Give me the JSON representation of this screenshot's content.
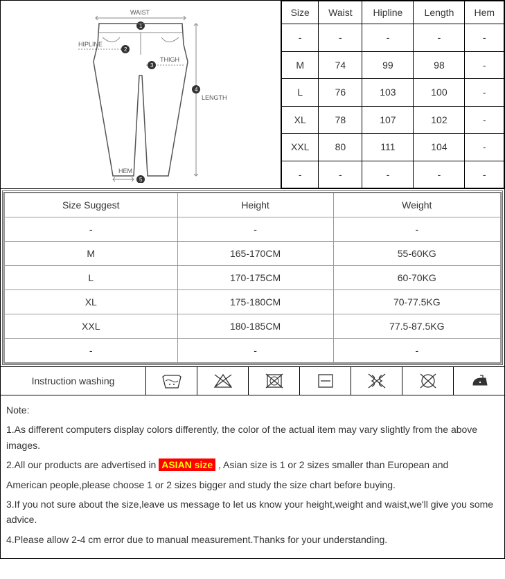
{
  "diagram": {
    "labels": {
      "waist": "WAIST",
      "hipline": "HIPLINE",
      "thigh": "THIGH",
      "length": "LENGTH",
      "hem": "HEM"
    },
    "markers": {
      "n1": "1",
      "n2": "2",
      "n3": "3",
      "n4": "4",
      "n5": "5"
    }
  },
  "sizeTable": {
    "columns": [
      "Size",
      "Waist",
      "Hipline",
      "Length",
      "Hem"
    ],
    "rows": [
      [
        "-",
        "-",
        "-",
        "-",
        "-"
      ],
      [
        "M",
        "74",
        "99",
        "98",
        "-"
      ],
      [
        "L",
        "76",
        "103",
        "100",
        "-"
      ],
      [
        "XL",
        "78",
        "107",
        "102",
        "-"
      ],
      [
        "XXL",
        "80",
        "111",
        "104",
        "-"
      ],
      [
        "-",
        "-",
        "-",
        "-",
        "-"
      ]
    ]
  },
  "suggestTable": {
    "columns": [
      "Size Suggest",
      "Height",
      "Weight"
    ],
    "rows": [
      [
        "-",
        "-",
        "-"
      ],
      [
        "M",
        "165-170CM",
        "55-60KG"
      ],
      [
        "L",
        "170-175CM",
        "60-70KG"
      ],
      [
        "XL",
        "175-180CM",
        "70-77.5KG"
      ],
      [
        "XXL",
        "180-185CM",
        "77.5-87.5KG"
      ],
      [
        "-",
        "-",
        "-"
      ]
    ]
  },
  "washing": {
    "label": "Instruction washing",
    "icons": [
      "wash-cold",
      "no-bleach",
      "no-tumble-dry",
      "dry-flat",
      "no-wring",
      "no-dryclean",
      "iron-low"
    ]
  },
  "notes": {
    "heading": "Note:",
    "l1": "1.As different computers display colors differently, the color of the actual item may vary slightly from the above images.",
    "l2a": "2.All our products are advertised in ",
    "l2asian": "ASIAN size",
    "l2b": " , Asian size is 1 or 2 sizes smaller than European and",
    "l2c": "American people,please choose 1 or 2 sizes bigger and study the size chart before buying.",
    "l3": "3.If you not sure about the size,leave us message to let us know your height,weight and waist,we'll give you some advice.",
    "l4": "4.Please allow 2-4 cm error due to manual measurement.Thanks for your understanding."
  }
}
